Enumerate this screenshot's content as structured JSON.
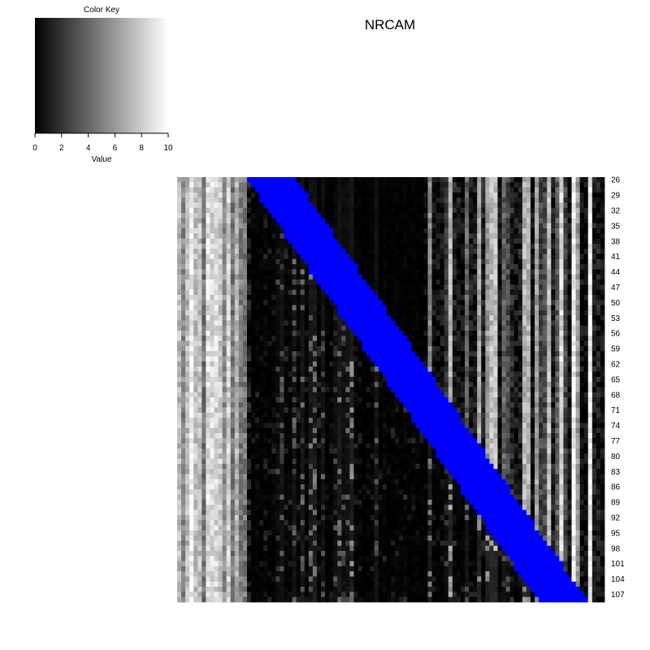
{
  "chart_data": {
    "type": "heatmap",
    "title": "NRCAM",
    "color_key": {
      "title": "Color Key",
      "xlabel": "Value",
      "range": [
        0,
        10
      ],
      "ticks": [
        "0",
        "2",
        "4",
        "6",
        "8",
        "10"
      ],
      "low_color": "#000000",
      "high_color": "#ffffff"
    },
    "highlight_color": "#0000ff",
    "row_labels": [
      "26",
      "29",
      "32",
      "35",
      "38",
      "41",
      "44",
      "47",
      "50",
      "53",
      "56",
      "59",
      "62",
      "65",
      "68",
      "71",
      "74",
      "77",
      "80",
      "83",
      "86",
      "89",
      "92",
      "95",
      "98",
      "101",
      "104",
      "107"
    ],
    "row_start": 26,
    "row_end": 108,
    "column_count": 104,
    "band_width_columns": 12
  }
}
